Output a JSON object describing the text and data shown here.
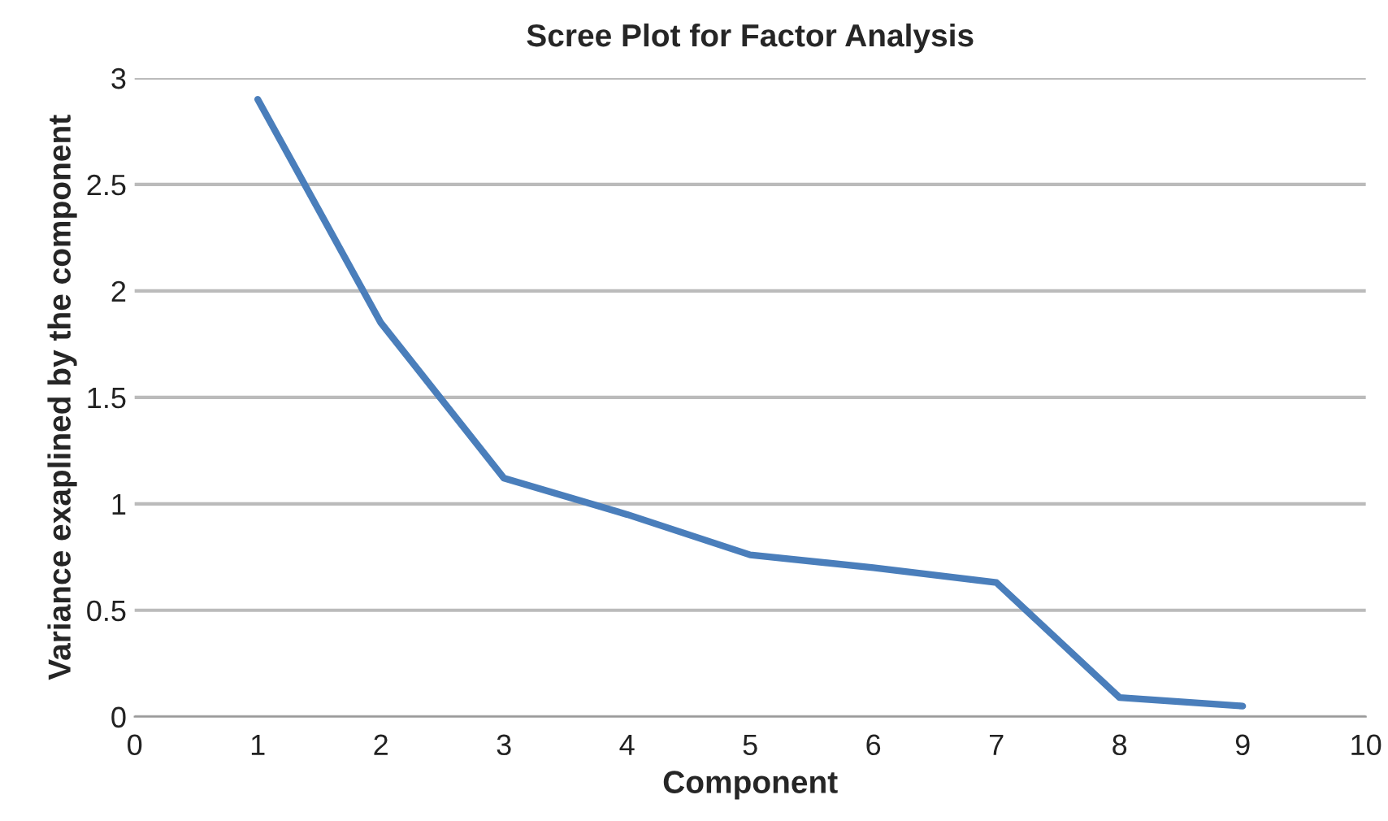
{
  "chart_data": {
    "type": "line",
    "title": "Scree Plot for Factor Analysis",
    "xlabel": "Component",
    "ylabel": "Variance exaplined by the component",
    "x": [
      1,
      2,
      3,
      4,
      5,
      6,
      7,
      8,
      9
    ],
    "series": [
      {
        "color": "#4a7ebb",
        "values": [
          2.9,
          1.85,
          1.12,
          0.95,
          0.76,
          0.7,
          0.63,
          0.09,
          0.05
        ]
      }
    ],
    "xlim": [
      0,
      10
    ],
    "xticks": [
      0,
      1,
      2,
      3,
      4,
      5,
      6,
      7,
      8,
      9,
      10
    ],
    "ylim": [
      0,
      3
    ],
    "yticks": [
      0,
      0.5,
      1,
      1.5,
      2,
      2.5,
      3
    ],
    "grid": "y",
    "legend": false,
    "marker": "none",
    "line_style": "solid"
  }
}
